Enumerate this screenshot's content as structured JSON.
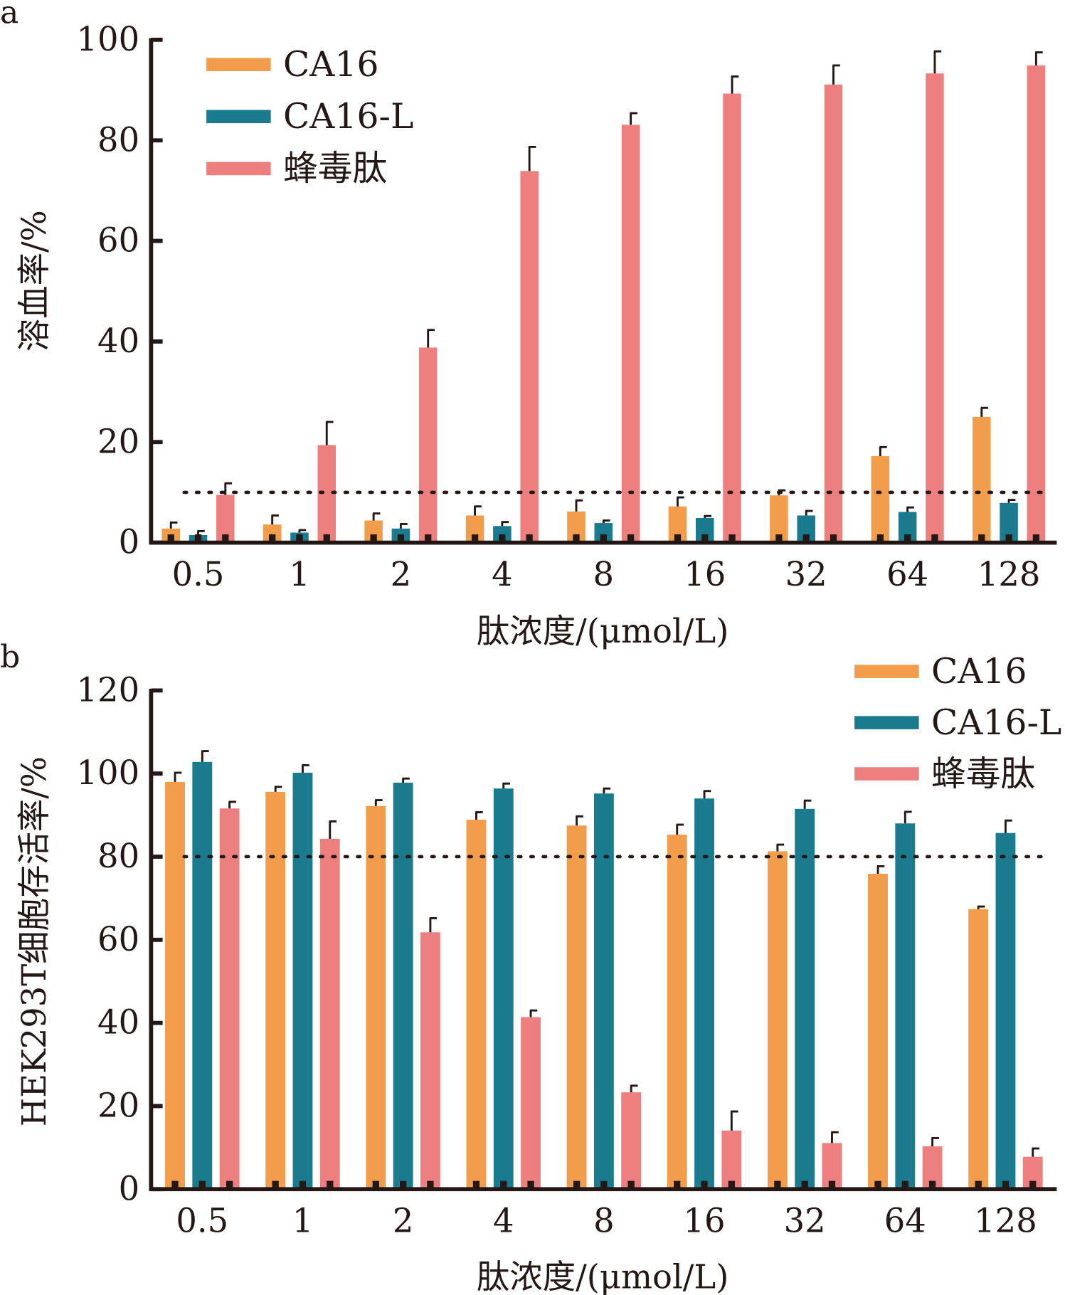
{
  "colors": {
    "CA16": "#F29D4B",
    "CA16-L": "#1A7A8E",
    "melittin": "#EE7F7F",
    "axis": "#231815"
  },
  "chart_data": [
    {
      "panel_label": "a",
      "type": "bar",
      "ylabel": "溶血率/%",
      "xlabel": "肽浓度/(μmol/L)",
      "categories": [
        "0.5",
        "1",
        "2",
        "4",
        "8",
        "16",
        "32",
        "64",
        "128"
      ],
      "ylim": [
        0,
        100
      ],
      "yticks": [
        "0",
        "20",
        "40",
        "60",
        "80",
        "100"
      ],
      "threshold": 10,
      "legend_position": "top-left",
      "series": [
        {
          "name": "CA16",
          "key": "CA16",
          "values": [
            2.8,
            3.6,
            4.4,
            5.4,
            6.2,
            7.2,
            9.4,
            17.2,
            25.0
          ],
          "errors": [
            1.2,
            1.8,
            1.4,
            1.8,
            2.2,
            1.8,
            1.0,
            1.8,
            1.8
          ]
        },
        {
          "name": "CA16-L",
          "key": "CA16-L",
          "values": [
            1.5,
            2.0,
            2.8,
            3.3,
            3.9,
            4.9,
            5.4,
            6.1,
            7.9
          ],
          "errors": [
            0.8,
            0.5,
            0.9,
            0.8,
            0.5,
            0.4,
            0.9,
            0.9,
            0.6
          ]
        },
        {
          "name": "蜂毒肽",
          "key": "melittin",
          "values": [
            9.5,
            19.4,
            38.8,
            73.9,
            83.1,
            89.3,
            91.1,
            93.3,
            94.9
          ],
          "errors": [
            2.3,
            4.6,
            3.5,
            4.8,
            2.3,
            3.4,
            3.8,
            4.4,
            2.6
          ]
        }
      ]
    },
    {
      "panel_label": "b",
      "type": "bar",
      "ylabel": "HEK293T细胞存活率/%",
      "xlabel": "肽浓度/(μmol/L)",
      "categories": [
        "0.5",
        "1",
        "2",
        "4",
        "8",
        "16",
        "32",
        "64",
        "128"
      ],
      "ylim": [
        0,
        120
      ],
      "yticks": [
        "0",
        "20",
        "40",
        "60",
        "80",
        "100",
        "120"
      ],
      "threshold": 80,
      "legend_position": "top-right",
      "series": [
        {
          "name": "CA16",
          "key": "CA16",
          "values": [
            98.0,
            95.6,
            92.2,
            88.9,
            87.5,
            85.3,
            81.3,
            75.9,
            67.4
          ],
          "errors": [
            2.2,
            1.2,
            1.4,
            1.8,
            2.2,
            2.4,
            1.6,
            1.8,
            0.6
          ]
        },
        {
          "name": "CA16-L",
          "key": "CA16-L",
          "values": [
            102.8,
            100.2,
            97.8,
            96.4,
            95.2,
            94.0,
            91.5,
            88.0,
            85.7
          ],
          "errors": [
            2.6,
            1.8,
            1.0,
            1.2,
            1.2,
            1.8,
            2.0,
            2.8,
            3.0
          ]
        },
        {
          "name": "蜂毒肽",
          "key": "melittin",
          "values": [
            91.6,
            84.3,
            61.8,
            41.4,
            23.3,
            14.1,
            11.1,
            10.3,
            7.8
          ],
          "errors": [
            1.6,
            4.2,
            3.4,
            1.6,
            1.6,
            4.6,
            2.6,
            2.0,
            2.0
          ]
        }
      ]
    }
  ]
}
